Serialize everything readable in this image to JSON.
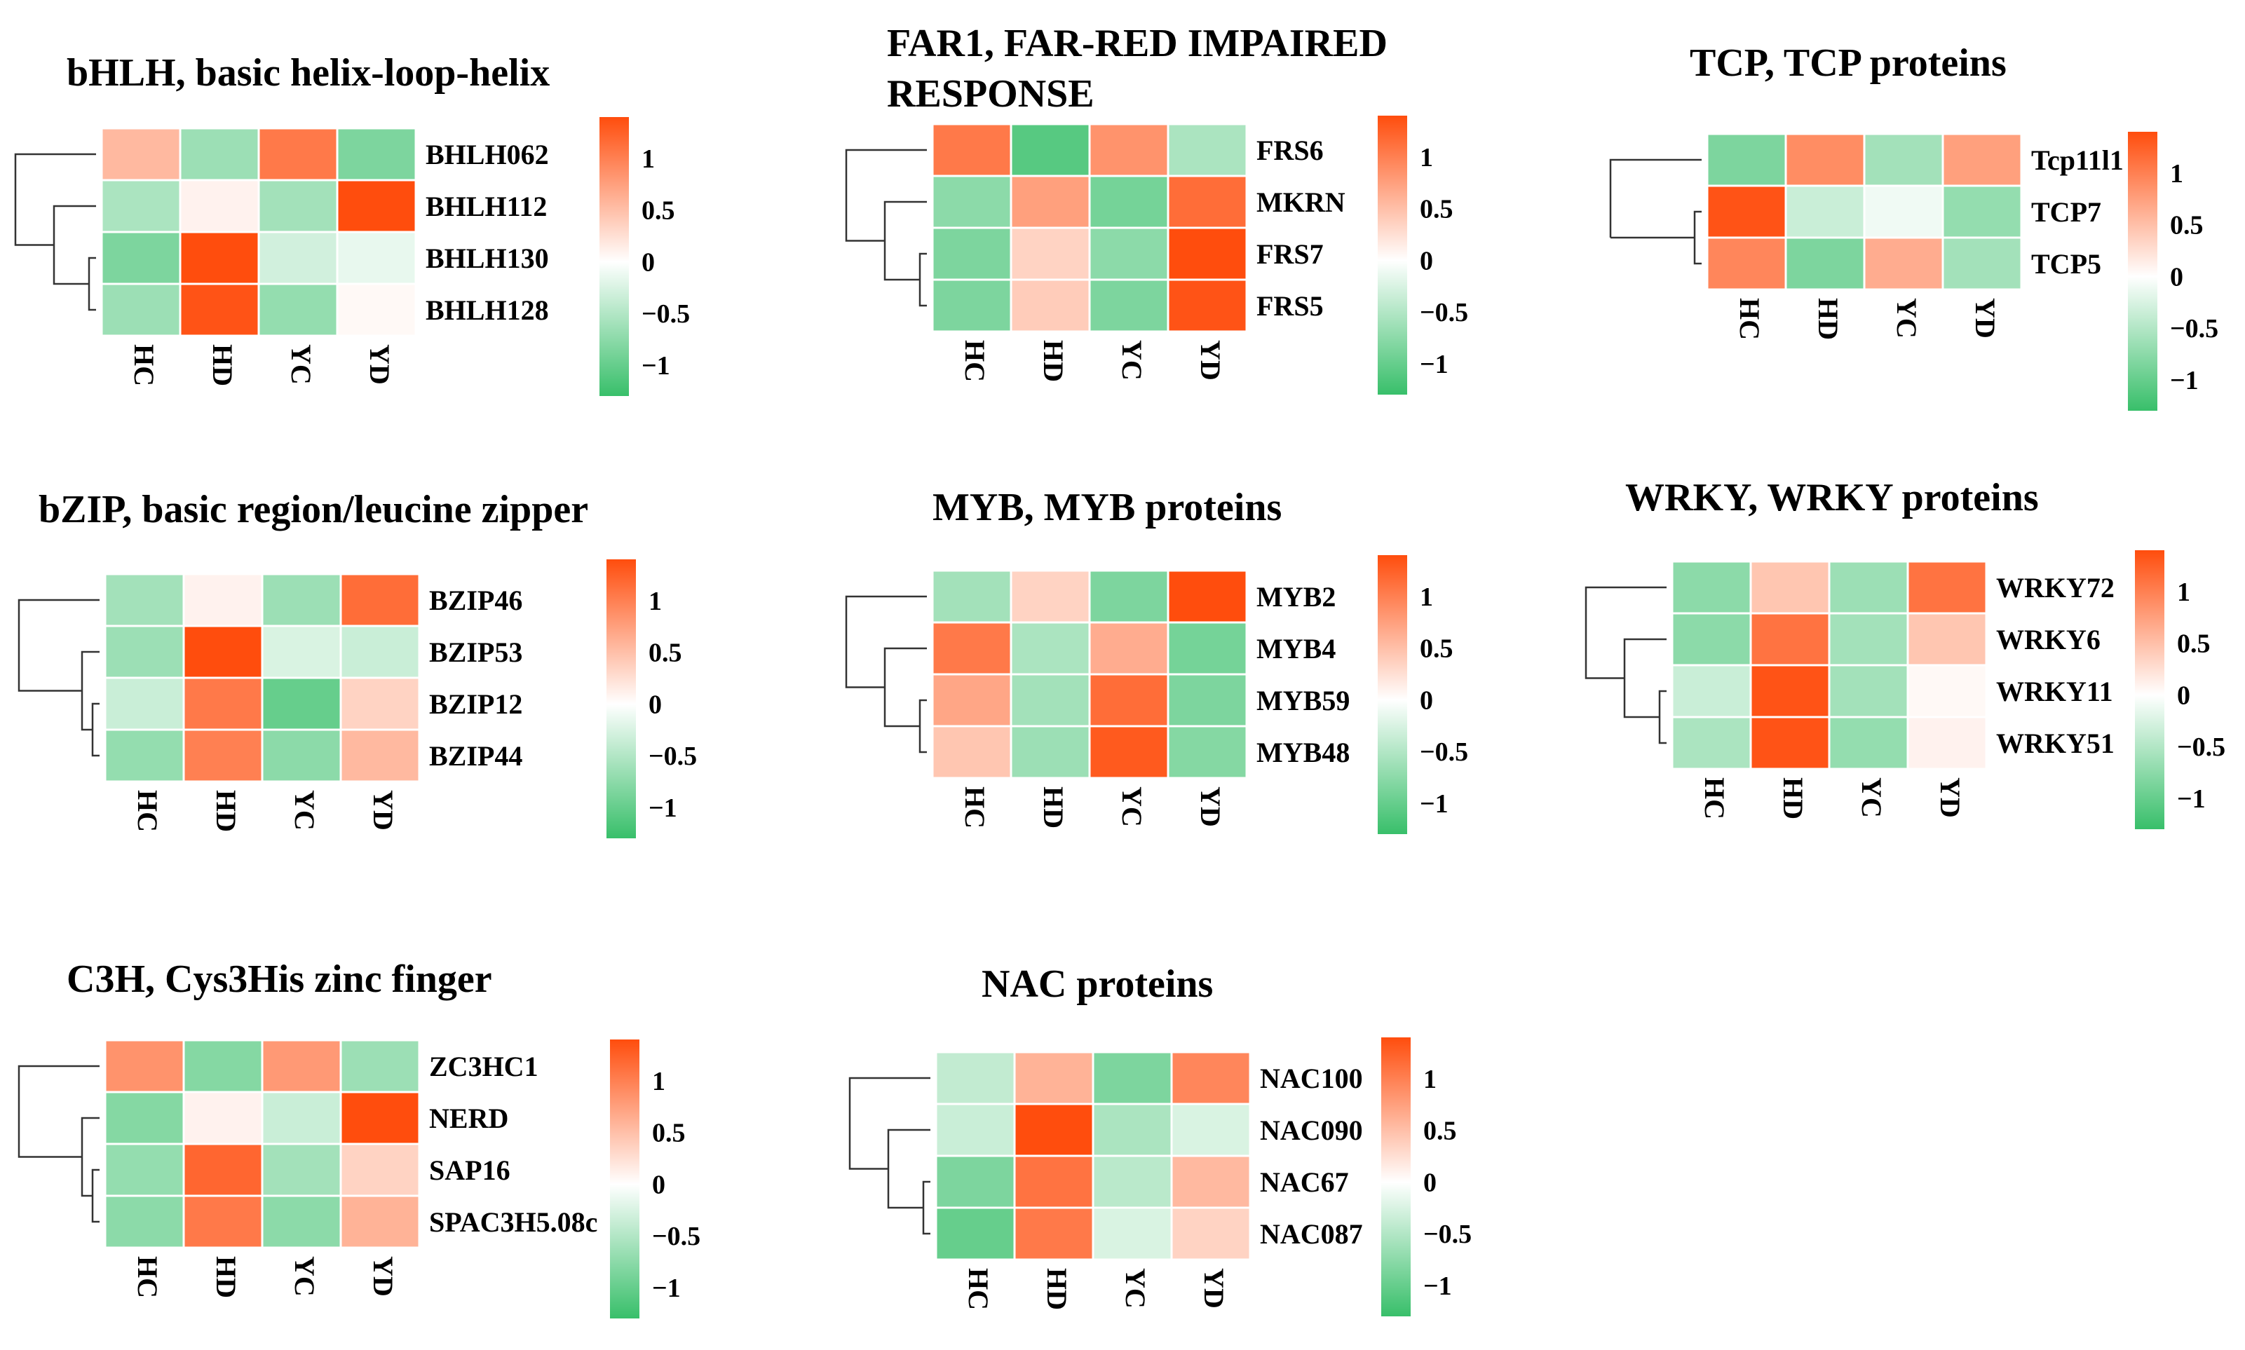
{
  "colors": {
    "low": "#38bf6a",
    "mid": "#ffffff",
    "high": "#ff4d0d"
  },
  "legend_ticks": [
    {
      "value": 1,
      "label": "1"
    },
    {
      "value": 0.5,
      "label": "0.5"
    },
    {
      "value": 0,
      "label": "0"
    },
    {
      "value": -0.5,
      "label": "−0.5"
    },
    {
      "value": -1,
      "label": "−1"
    }
  ],
  "chart_data": [
    {
      "type": "heatmap",
      "title": [
        "bHLH, basic helix-loop-helix"
      ],
      "columns": [
        "HC",
        "HD",
        "YC",
        "YD"
      ],
      "rows": [
        "BHLH062",
        "BHLH112",
        "BHLH130",
        "BHLH128"
      ],
      "values": [
        [
          0.55,
          -0.65,
          1.05,
          -0.85
        ],
        [
          -0.55,
          0.1,
          -0.6,
          1.4
        ],
        [
          -0.85,
          1.4,
          -0.3,
          -0.15
        ],
        [
          -0.65,
          1.35,
          -0.7,
          0.05
        ]
      ],
      "legend_range": [
        -1.3,
        1.4
      ]
    },
    {
      "type": "heatmap",
      "title": [
        "FAR1, FAR-RED IMPAIRED",
        "RESPONSE"
      ],
      "columns": [
        "HC",
        "HD",
        "YC",
        "YD"
      ],
      "rows": [
        "FRS6",
        "MKRN",
        "FRS7",
        "FRS5"
      ],
      "values": [
        [
          1.05,
          -1.1,
          0.85,
          -0.55
        ],
        [
          -0.75,
          0.75,
          -0.9,
          1.15
        ],
        [
          -0.85,
          0.35,
          -0.75,
          1.4
        ],
        [
          -0.85,
          0.4,
          -0.85,
          1.35
        ]
      ],
      "legend_range": [
        -1.3,
        1.4
      ]
    },
    {
      "type": "heatmap",
      "title": [
        "TCP, TCP proteins"
      ],
      "columns": [
        "HC",
        "HD",
        "YC",
        "YD"
      ],
      "rows": [
        "Tcp11l1",
        "TCP7",
        "TCP5"
      ],
      "values": [
        [
          -0.85,
          0.9,
          -0.6,
          0.75
        ],
        [
          1.35,
          -0.35,
          -0.1,
          -0.7
        ],
        [
          0.95,
          -0.85,
          0.65,
          -0.6
        ]
      ],
      "legend_range": [
        -1.3,
        1.4
      ]
    },
    {
      "type": "heatmap",
      "title": [
        "bZIP, basic region/leucine zipper"
      ],
      "columns": [
        "HC",
        "HD",
        "YC",
        "YD"
      ],
      "rows": [
        "BZIP46",
        "BZIP53",
        "BZIP12",
        "BZIP44"
      ],
      "values": [
        [
          -0.6,
          0.1,
          -0.65,
          1.15
        ],
        [
          -0.65,
          1.4,
          -0.25,
          -0.35
        ],
        [
          -0.35,
          1.05,
          -1.0,
          0.35
        ],
        [
          -0.7,
          1.0,
          -0.75,
          0.55
        ]
      ],
      "legend_range": [
        -1.3,
        1.4
      ]
    },
    {
      "type": "heatmap",
      "title": [
        "MYB, MYB proteins"
      ],
      "columns": [
        "HC",
        "HD",
        "YC",
        "YD"
      ],
      "rows": [
        "MYB2",
        "MYB4",
        "MYB59",
        "MYB48"
      ],
      "values": [
        [
          -0.6,
          0.35,
          -0.85,
          1.4
        ],
        [
          1.05,
          -0.55,
          0.65,
          -0.9
        ],
        [
          0.7,
          -0.6,
          1.15,
          -0.85
        ],
        [
          0.45,
          -0.65,
          1.3,
          -0.8
        ]
      ],
      "legend_range": [
        -1.3,
        1.4
      ]
    },
    {
      "type": "heatmap",
      "title": [
        "WRKY, WRKY proteins"
      ],
      "columns": [
        "HC",
        "HD",
        "YC",
        "YD"
      ],
      "rows": [
        "WRKY72",
        "WRKY6",
        "WRKY11",
        "WRKY51"
      ],
      "values": [
        [
          -0.75,
          0.45,
          -0.65,
          1.1
        ],
        [
          -0.75,
          1.1,
          -0.6,
          0.45
        ],
        [
          -0.35,
          1.35,
          -0.6,
          0.05
        ],
        [
          -0.55,
          1.35,
          -0.7,
          0.1
        ]
      ],
      "legend_range": [
        -1.3,
        1.4
      ]
    },
    {
      "type": "heatmap",
      "title": [
        "C3H, Cys3His zinc finger"
      ],
      "columns": [
        "HC",
        "HD",
        "YC",
        "YD"
      ],
      "rows": [
        "ZC3HC1",
        "NERD",
        "SAP16",
        "SPAC3H5.08c"
      ],
      "values": [
        [
          0.85,
          -0.8,
          0.8,
          -0.65
        ],
        [
          -0.8,
          0.1,
          -0.35,
          1.4
        ],
        [
          -0.7,
          1.2,
          -0.6,
          0.35
        ],
        [
          -0.75,
          1.05,
          -0.75,
          0.6
        ]
      ],
      "legend_range": [
        -1.3,
        1.4
      ]
    },
    {
      "type": "heatmap",
      "title": [
        "NAC proteins"
      ],
      "columns": [
        "HC",
        "HD",
        "YC",
        "YD"
      ],
      "rows": [
        "NAC100",
        "NAC090",
        "NAC67",
        "NAC087"
      ],
      "values": [
        [
          -0.4,
          0.6,
          -0.85,
          0.95
        ],
        [
          -0.35,
          1.4,
          -0.55,
          -0.25
        ],
        [
          -0.85,
          1.1,
          -0.45,
          0.55
        ],
        [
          -1.0,
          1.05,
          -0.25,
          0.35
        ]
      ],
      "legend_range": [
        -1.3,
        1.4
      ]
    }
  ]
}
